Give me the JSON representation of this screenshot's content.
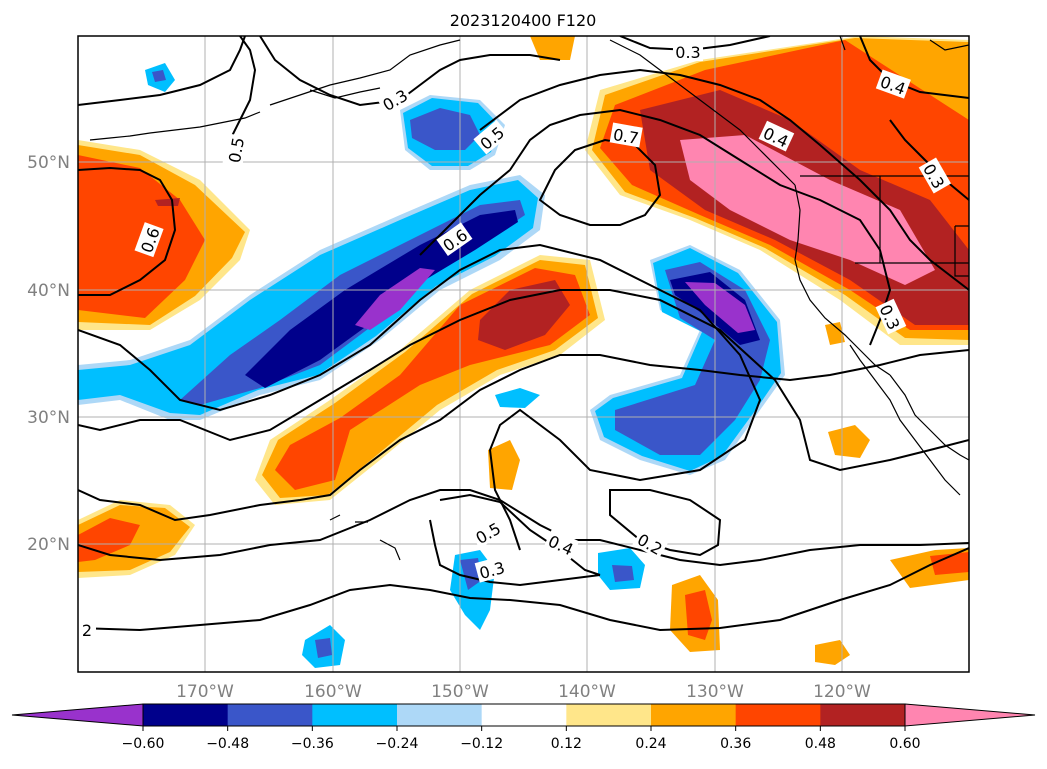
{
  "title": "2023120400 F120",
  "lat_labels": [
    "50°N",
    "40°N",
    "30°N",
    "20°N"
  ],
  "lon_labels": [
    "170°W",
    "160°W",
    "150°W",
    "140°W",
    "130°W",
    "120°W"
  ],
  "contour_labels": [
    "0.3",
    "0.4",
    "0.5",
    "0.3",
    "0.5",
    "0.6",
    "0.7",
    "0.4",
    "0.3",
    "0.6",
    "0.3",
    "0.5",
    "0.4",
    "0.2",
    "0.3",
    "2"
  ],
  "colorbar": {
    "colors": [
      "#9932cc",
      "#00008b",
      "#3a56c9",
      "#00bfff",
      "#add8f7",
      "#ffffff",
      "#ffe68a",
      "#ffa500",
      "#ff4500",
      "#b22222",
      "#ff85b0"
    ],
    "tick_labels": [
      "−0.60",
      "−0.48",
      "−0.36",
      "−0.24",
      "−0.12",
      "0.12",
      "0.24",
      "0.36",
      "0.48",
      "0.60"
    ]
  },
  "colors": {
    "line": "#000000",
    "grid": "#b0b0b0",
    "axis_label": "#808080"
  }
}
